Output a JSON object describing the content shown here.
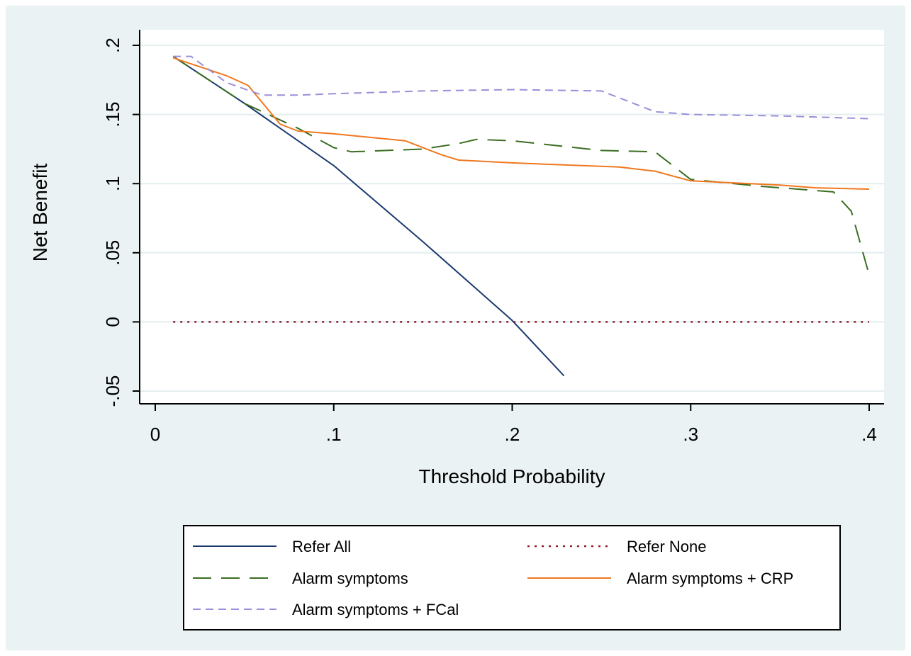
{
  "chart_data": {
    "type": "line",
    "xlabel": "Threshold Probability",
    "ylabel": "Net Benefit",
    "xlim": [
      0,
      0.4
    ],
    "ylim": [
      -0.06,
      0.21
    ],
    "x_ticks": [
      0,
      0.1,
      0.2,
      0.3,
      0.4
    ],
    "x_tick_labels": [
      "0",
      ".1",
      ".2",
      ".3",
      ".4"
    ],
    "y_ticks": [
      -0.05,
      0,
      0.05,
      0.1,
      0.15,
      0.2
    ],
    "y_tick_labels": [
      "-.05",
      "0",
      ".05",
      ".1",
      ".15",
      ".2"
    ],
    "grid": true,
    "legend_position": "bottom",
    "series": [
      {
        "name": "Refer All",
        "color": "#1a3a6e",
        "dash": "solid",
        "x": [
          0.01,
          0.05,
          0.1,
          0.15,
          0.2,
          0.229
        ],
        "y": [
          0.192,
          0.158,
          0.113,
          0.058,
          0.001,
          -0.039
        ]
      },
      {
        "name": "Refer None",
        "color": "#8b1e2e",
        "dash": "dotted",
        "x": [
          0.01,
          0.4
        ],
        "y": [
          0,
          0
        ]
      },
      {
        "name": "Alarm symptoms",
        "color": "#3a6e20",
        "dash": "long-dash",
        "x": [
          0.01,
          0.05,
          0.08,
          0.1,
          0.11,
          0.15,
          0.17,
          0.18,
          0.2,
          0.25,
          0.28,
          0.3,
          0.34,
          0.38,
          0.39,
          0.4
        ],
        "y": [
          0.192,
          0.158,
          0.14,
          0.126,
          0.123,
          0.125,
          0.129,
          0.132,
          0.131,
          0.124,
          0.123,
          0.103,
          0.098,
          0.094,
          0.08,
          0.034
        ]
      },
      {
        "name": "Alarm symptoms + CRP",
        "color": "#f07820",
        "dash": "solid",
        "x": [
          0.01,
          0.04,
          0.052,
          0.07,
          0.08,
          0.1,
          0.14,
          0.16,
          0.17,
          0.2,
          0.26,
          0.28,
          0.3,
          0.35,
          0.37,
          0.4
        ],
        "y": [
          0.191,
          0.178,
          0.171,
          0.143,
          0.138,
          0.136,
          0.131,
          0.121,
          0.117,
          0.115,
          0.112,
          0.109,
          0.102,
          0.099,
          0.097,
          0.096
        ]
      },
      {
        "name": "Alarm symptoms + FCal",
        "color": "#9a8fd8",
        "dash": "dashed",
        "x": [
          0.01,
          0.02,
          0.04,
          0.06,
          0.08,
          0.1,
          0.15,
          0.2,
          0.25,
          0.28,
          0.3,
          0.35,
          0.4
        ],
        "y": [
          0.192,
          0.192,
          0.173,
          0.164,
          0.164,
          0.165,
          0.167,
          0.168,
          0.167,
          0.152,
          0.15,
          0.149,
          0.147
        ]
      }
    ]
  }
}
